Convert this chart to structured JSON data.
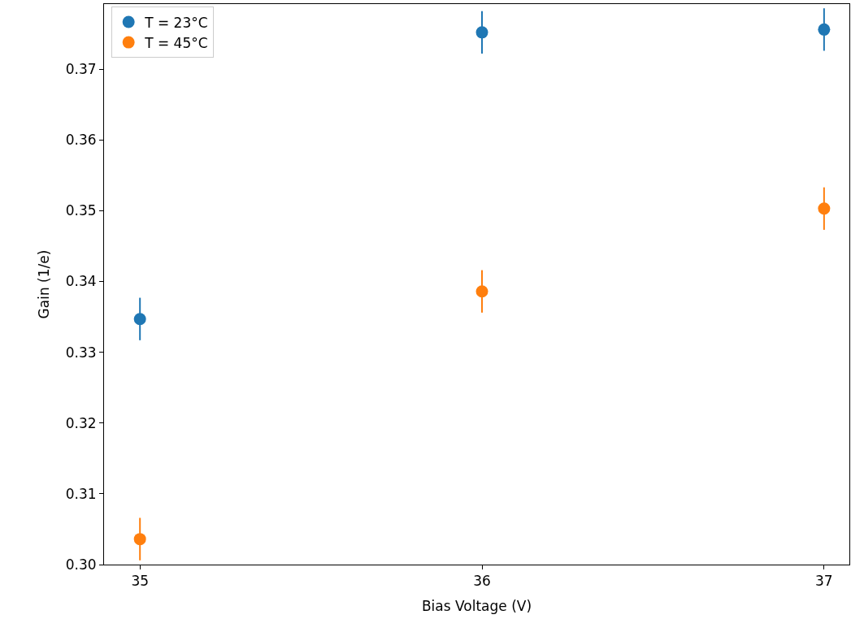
{
  "chart_data": {
    "type": "scatter",
    "xlabel": "Bias Voltage (V)",
    "ylabel": "Gain (1/e)",
    "x": [
      35,
      36,
      37
    ],
    "series": [
      {
        "name": "T = 23°C",
        "color": "#1f77b4",
        "values": [
          0.3347,
          0.3752,
          0.3756
        ],
        "errors": [
          0.003,
          0.003,
          0.003
        ]
      },
      {
        "name": "T = 45°C",
        "color": "#ff7f0e",
        "values": [
          0.3036,
          0.3386,
          0.3503
        ],
        "errors": [
          0.003,
          0.003,
          0.003
        ]
      }
    ],
    "xlim": [
      34.895,
      37.074
    ],
    "ylim": [
      0.3,
      0.3792
    ],
    "xticks": [
      35,
      36,
      37
    ],
    "yticks": [
      {
        "value": 0.3,
        "label": "0.30"
      },
      {
        "value": 0.31,
        "label": "0.31"
      },
      {
        "value": 0.32,
        "label": "0.32"
      },
      {
        "value": 0.33,
        "label": "0.33"
      },
      {
        "value": 0.34,
        "label": "0.34"
      },
      {
        "value": 0.35,
        "label": "0.35"
      },
      {
        "value": 0.36,
        "label": "0.36"
      },
      {
        "value": 0.37,
        "label": "0.37"
      }
    ],
    "legend": "top left",
    "marker": "circle"
  }
}
